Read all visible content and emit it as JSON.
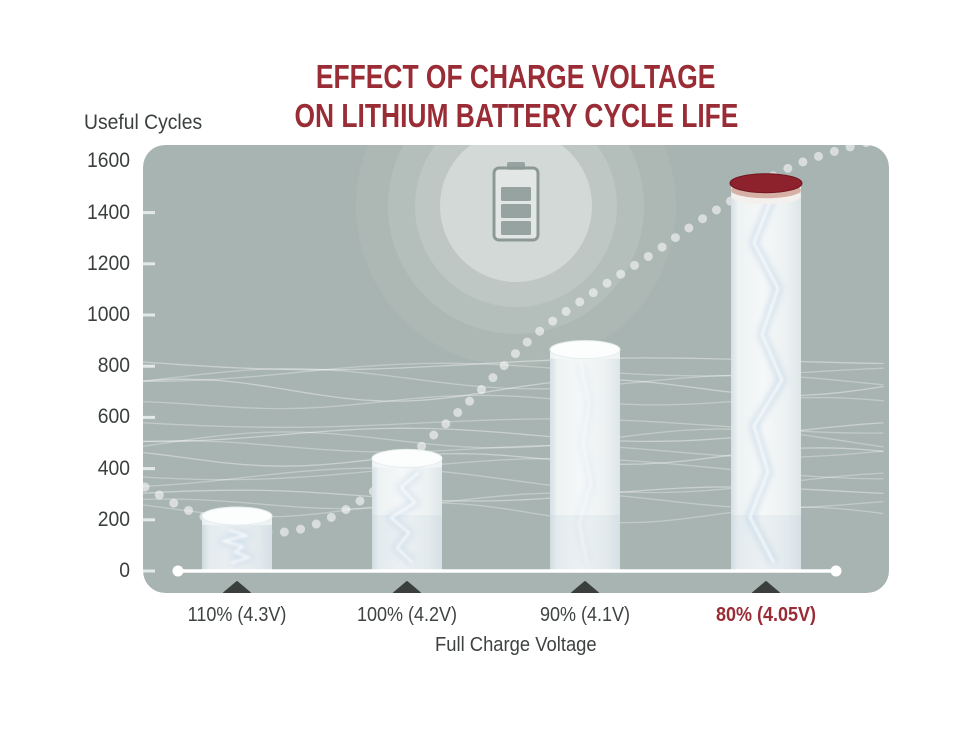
{
  "title": {
    "line1": "EFFECT OF CHARGE VOLTAGE",
    "line2": "ON LITHIUM BATTERY CYCLE LIFE"
  },
  "chart_data": {
    "type": "bar",
    "title": "EFFECT OF CHARGE VOLTAGE ON LITHIUM BATTERY CYCLE LIFE",
    "ylabel": "Useful Cycles",
    "xlabel": "Full Charge Voltage",
    "categories": [
      "110% (4.3V)",
      "100% (4.2V)",
      "90% (4.1V)",
      "80% (4.05V)"
    ],
    "values": [
      250,
      475,
      900,
      1550
    ],
    "highlight_index": 3,
    "highlighted_category": "80% (4.05V)",
    "yticks": [
      0,
      200,
      400,
      600,
      800,
      1000,
      1200,
      1400,
      1600
    ],
    "ylim": [
      0,
      1600
    ],
    "grid": false,
    "legend": null,
    "bar_style": "cylinder",
    "annotations": [
      "dotted trend curve dips near 110% then rises steeply toward 80% charge",
      "battery icon with radial glow at top center",
      "wavy contour lines across background",
      "triangle marker under each bar on the x-axis"
    ]
  },
  "icons": {
    "battery": "battery-3-bars-icon",
    "category_marker": "triangle-up-marker"
  },
  "colors": {
    "accent_red": "#9a2c36",
    "cap_red": "#8d212c",
    "panel_background": "#a8b4b1",
    "text": "#3e4341",
    "bar_fill": "#f0f4f5",
    "axis_line": "#ffffff",
    "trend_dots": "rgba(255,255,255,0.55)",
    "marker_dark": "#3a3f3e"
  }
}
